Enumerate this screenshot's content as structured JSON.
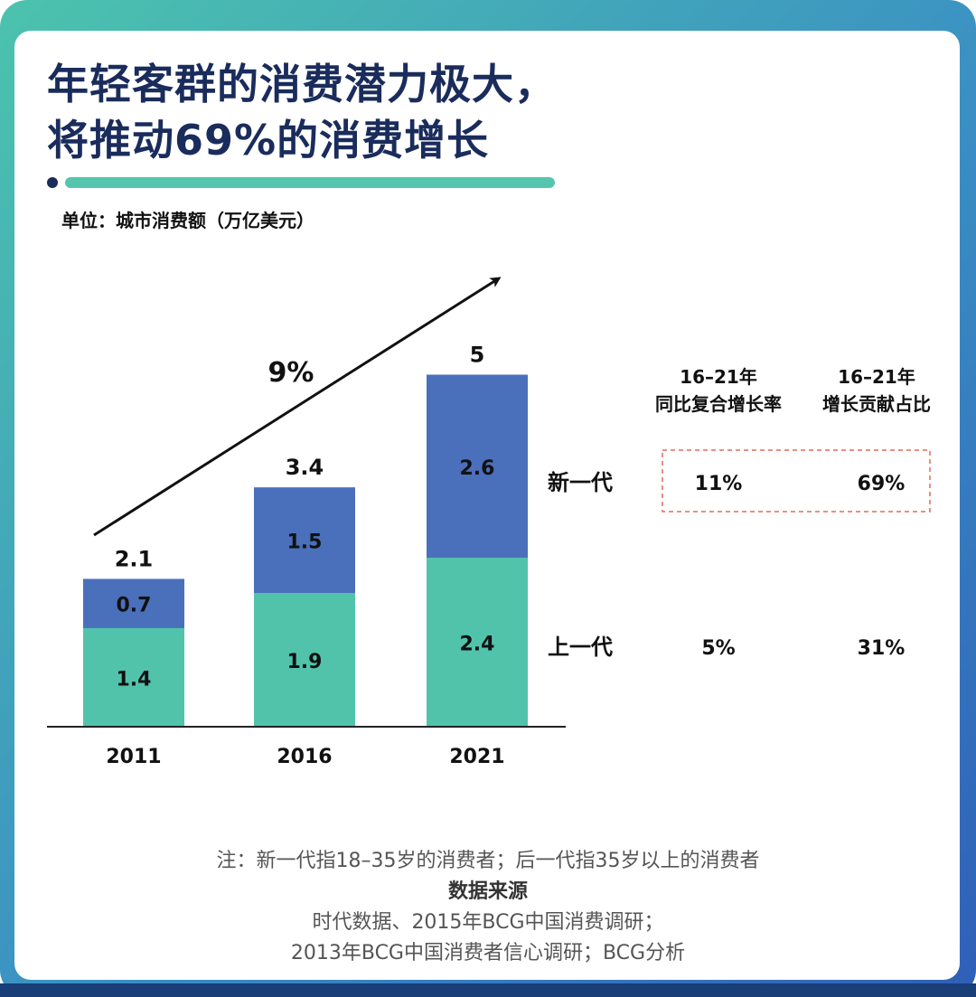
{
  "title_lines": [
    "年轻客群的消费潜力极大，",
    "将推动69%的消费增长"
  ],
  "unit_label": "单位：城市消费额（万亿美元）",
  "colors": {
    "new_generation": "#4a6fbb",
    "previous_generation": "#51c3ab",
    "title": "#1a2c5c",
    "accent_rule": "#55c6ad",
    "dashed_box": "#e06c5a"
  },
  "chart_data": {
    "type": "bar",
    "stacked": true,
    "categories": [
      "2011",
      "2016",
      "2021"
    ],
    "series": [
      {
        "name": "上一代",
        "values": [
          1.4,
          1.9,
          2.4
        ]
      },
      {
        "name": "新一代",
        "values": [
          0.7,
          1.5,
          2.6
        ]
      }
    ],
    "totals": [
      "2.1",
      "3.4",
      "5"
    ],
    "growth_arrow_label": "9%",
    "ylim": [
      0,
      5.7
    ]
  },
  "table": {
    "headers": [
      [
        "16–21年",
        "同比复合增长率"
      ],
      [
        "16–21年",
        "增长贡献占比"
      ]
    ],
    "rows": [
      {
        "label": "新一代",
        "cagr": "11%",
        "share": "69%",
        "highlight": true
      },
      {
        "label": "上一代",
        "cagr": "5%",
        "share": "31%",
        "highlight": false
      }
    ]
  },
  "notes": {
    "definition": "注：新一代指18–35岁的消费者；后一代指35岁以上的消费者",
    "source_heading": "数据来源",
    "source_line1": "时代数据、2015年BCG中国消费调研；",
    "source_line2": "2013年BCG中国消费者信心调研；BCG分析"
  }
}
